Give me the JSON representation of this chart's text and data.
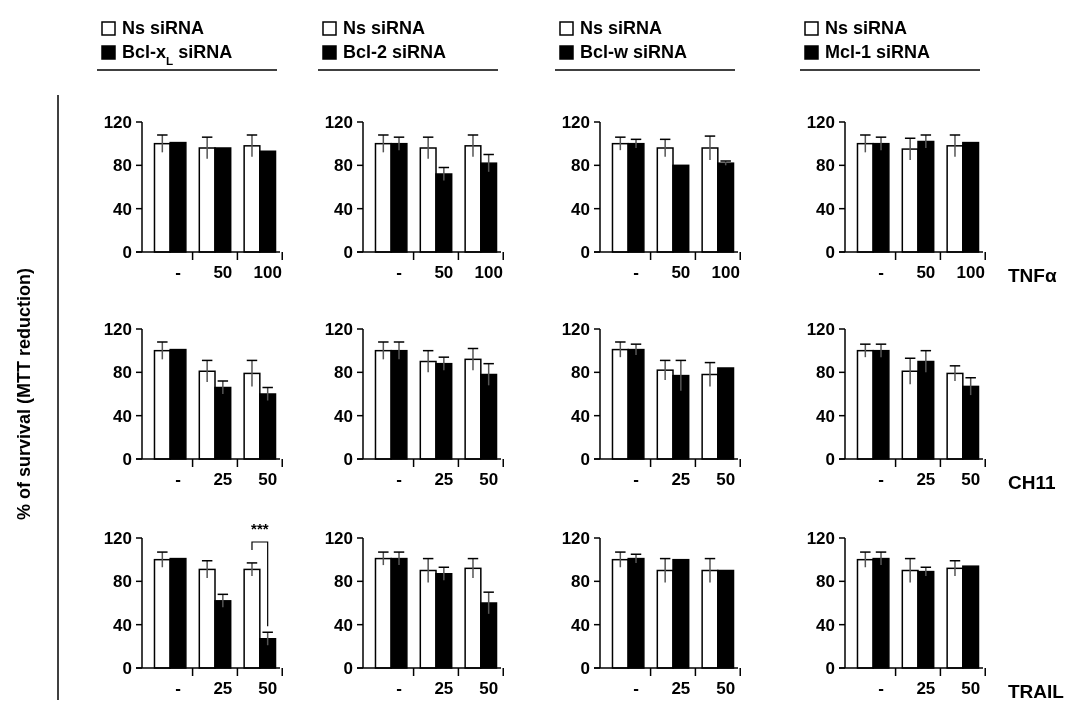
{
  "chart_data": [
    {
      "type": "bar",
      "categories": [
        "-",
        "50",
        "100"
      ],
      "ylim": [
        0,
        120
      ],
      "yticks": [
        0,
        40,
        80,
        120
      ],
      "legend": "top",
      "series": [
        {
          "name": "Ns siRNA",
          "color": "#ffffff",
          "values": [
            100,
            96,
            98
          ],
          "errors": [
            8,
            10,
            10
          ]
        },
        {
          "name": "Bcl-x$_{L}$ siRNA",
          "color": "#000000",
          "values": [
            101,
            96,
            93
          ],
          "errors": [
            null,
            null,
            null
          ]
        }
      ]
    },
    {
      "type": "bar",
      "categories": [
        "-",
        "50",
        "100"
      ],
      "ylim": [
        0,
        120
      ],
      "yticks": [
        0,
        40,
        80,
        120
      ],
      "legend": "top",
      "series": [
        {
          "name": "Ns siRNA",
          "color": "#ffffff",
          "values": [
            100,
            96,
            98
          ],
          "errors": [
            8,
            10,
            10
          ]
        },
        {
          "name": "Bcl-2 siRNA",
          "color": "#000000",
          "values": [
            100,
            72,
            82
          ],
          "errors": [
            6,
            6,
            8
          ]
        }
      ]
    },
    {
      "type": "bar",
      "categories": [
        "-",
        "50",
        "100"
      ],
      "ylim": [
        0,
        120
      ],
      "yticks": [
        0,
        40,
        80,
        120
      ],
      "legend": "top",
      "series": [
        {
          "name": "Ns siRNA",
          "color": "#ffffff",
          "values": [
            100,
            96,
            96
          ],
          "errors": [
            6,
            8,
            11
          ]
        },
        {
          "name": "Bcl-w siRNA",
          "color": "#000000",
          "values": [
            100,
            80,
            82
          ],
          "errors": [
            4,
            null,
            2
          ]
        }
      ]
    },
    {
      "type": "bar",
      "categories": [
        "-",
        "50",
        "100"
      ],
      "ylim": [
        0,
        120
      ],
      "yticks": [
        0,
        40,
        80,
        120
      ],
      "legend": "top",
      "xlabel": "TNFα",
      "series": [
        {
          "name": "Ns siRNA",
          "color": "#ffffff",
          "values": [
            100,
            95,
            98
          ],
          "errors": [
            8,
            10,
            10
          ]
        },
        {
          "name": "Mcl-1 siRNA",
          "color": "#000000",
          "values": [
            100,
            102,
            101
          ],
          "errors": [
            6,
            6,
            null
          ]
        }
      ]
    },
    {
      "type": "bar",
      "categories": [
        "-",
        "25",
        "50"
      ],
      "ylim": [
        0,
        120
      ],
      "yticks": [
        0,
        40,
        80,
        120
      ],
      "ylabel": "% of survival (MTT reduction)",
      "series": [
        {
          "color": "#ffffff",
          "values": [
            100,
            81,
            79
          ],
          "errors": [
            8,
            10,
            12
          ]
        },
        {
          "color": "#000000",
          "values": [
            101,
            66,
            60
          ],
          "errors": [
            null,
            6,
            6
          ]
        }
      ]
    },
    {
      "type": "bar",
      "categories": [
        "-",
        "25",
        "50"
      ],
      "ylim": [
        0,
        120
      ],
      "yticks": [
        0,
        40,
        80,
        120
      ],
      "series": [
        {
          "color": "#ffffff",
          "values": [
            100,
            90,
            92
          ],
          "errors": [
            8,
            10,
            10
          ]
        },
        {
          "color": "#000000",
          "values": [
            100,
            88,
            78
          ],
          "errors": [
            8,
            6,
            10
          ]
        }
      ]
    },
    {
      "type": "bar",
      "categories": [
        "-",
        "25",
        "50"
      ],
      "ylim": [
        0,
        120
      ],
      "yticks": [
        0,
        40,
        80,
        120
      ],
      "series": [
        {
          "color": "#ffffff",
          "values": [
            101,
            82,
            78
          ],
          "errors": [
            7,
            9,
            11
          ]
        },
        {
          "color": "#000000",
          "values": [
            101,
            77,
            84
          ],
          "errors": [
            5,
            14,
            null
          ]
        }
      ]
    },
    {
      "type": "bar",
      "categories": [
        "-",
        "25",
        "50"
      ],
      "ylim": [
        0,
        120
      ],
      "yticks": [
        0,
        40,
        80,
        120
      ],
      "xlabel": "CH11",
      "series": [
        {
          "color": "#ffffff",
          "values": [
            100,
            81,
            79
          ],
          "errors": [
            6,
            12,
            7
          ]
        },
        {
          "color": "#000000",
          "values": [
            100,
            90,
            67
          ],
          "errors": [
            6,
            10,
            8
          ]
        }
      ]
    },
    {
      "type": "bar",
      "categories": [
        "-",
        "25",
        "50"
      ],
      "ylim": [
        0,
        120
      ],
      "yticks": [
        0,
        40,
        80,
        120
      ],
      "annotations": [
        "***"
      ],
      "series": [
        {
          "color": "#ffffff",
          "values": [
            100,
            91,
            91
          ],
          "errors": [
            7,
            8,
            6
          ]
        },
        {
          "color": "#000000",
          "values": [
            101,
            62,
            27
          ],
          "errors": [
            null,
            6,
            6
          ]
        }
      ]
    },
    {
      "type": "bar",
      "categories": [
        "-",
        "25",
        "50"
      ],
      "ylim": [
        0,
        120
      ],
      "yticks": [
        0,
        40,
        80,
        120
      ],
      "series": [
        {
          "color": "#ffffff",
          "values": [
            101,
            90,
            92
          ],
          "errors": [
            6,
            11,
            9
          ]
        },
        {
          "color": "#000000",
          "values": [
            101,
            87,
            60
          ],
          "errors": [
            6,
            6,
            10
          ]
        }
      ]
    },
    {
      "type": "bar",
      "categories": [
        "-",
        "25",
        "50"
      ],
      "ylim": [
        0,
        120
      ],
      "yticks": [
        0,
        40,
        80,
        120
      ],
      "series": [
        {
          "color": "#ffffff",
          "values": [
            100,
            90,
            90
          ],
          "errors": [
            7,
            11,
            11
          ]
        },
        {
          "color": "#000000",
          "values": [
            101,
            100,
            90
          ],
          "errors": [
            4,
            null,
            null
          ]
        }
      ]
    },
    {
      "type": "bar",
      "categories": [
        "-",
        "25",
        "50"
      ],
      "ylim": [
        0,
        120
      ],
      "yticks": [
        0,
        40,
        80,
        120
      ],
      "xlabel": "TRAIL",
      "series": [
        {
          "color": "#ffffff",
          "values": [
            100,
            90,
            92
          ],
          "errors": [
            7,
            11,
            7
          ]
        },
        {
          "color": "#000000",
          "values": [
            101,
            89,
            94
          ],
          "errors": [
            6,
            4,
            null
          ]
        }
      ]
    }
  ]
}
